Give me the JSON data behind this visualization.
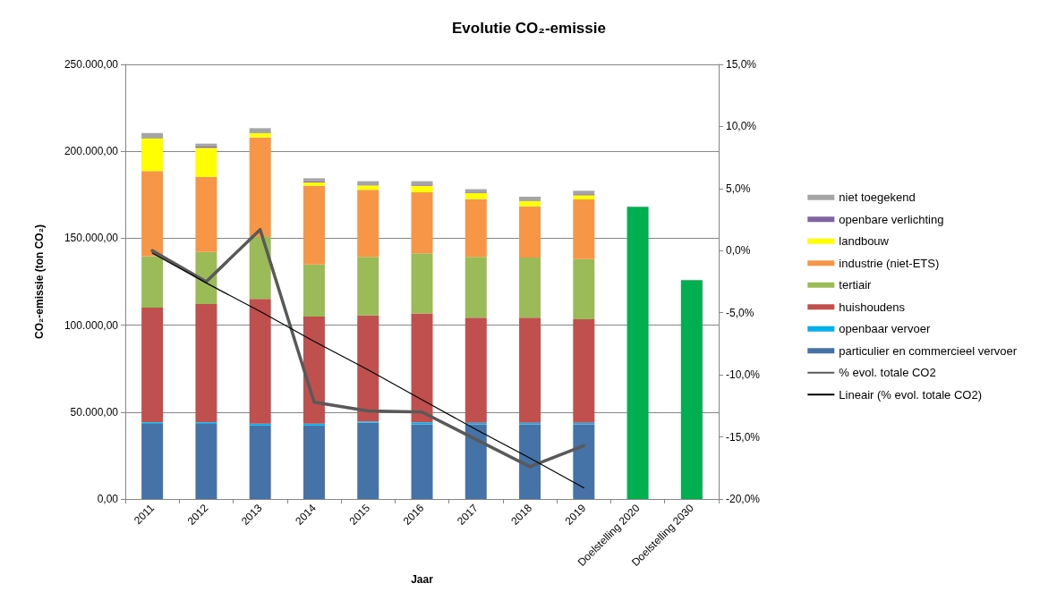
{
  "chart_data": {
    "type": "bar",
    "stacked": true,
    "title": "Evolutie CO₂-emissie",
    "xlabel": "Jaar",
    "ylabel": "CO₂-emissie (ton CO₂)",
    "categories": [
      "2011",
      "2012",
      "2013",
      "2014",
      "2015",
      "2016",
      "2017",
      "2018",
      "2019",
      "Doelstelling 2020",
      "Doelstelling 2030"
    ],
    "series": [
      {
        "name": "particulier en commercieel vervoer",
        "color": "#4572a7",
        "values": [
          43200,
          43200,
          42300,
          42300,
          43900,
          43000,
          43000,
          43000,
          43000,
          null,
          null
        ]
      },
      {
        "name": "openbaar vervoer",
        "color": "#00b0f0",
        "values": [
          900,
          900,
          1100,
          1100,
          700,
          1100,
          900,
          900,
          900,
          null,
          null
        ]
      },
      {
        "name": "huishoudens",
        "color": "#c0504d",
        "values": [
          66000,
          68000,
          71700,
          61500,
          61000,
          62700,
          60400,
          60400,
          59500,
          null,
          null
        ]
      },
      {
        "name": "tertiair",
        "color": "#9bbb59",
        "values": [
          29500,
          30000,
          35600,
          30000,
          33700,
          34500,
          35000,
          34600,
          34600,
          null,
          null
        ]
      },
      {
        "name": "industrie (niet-ETS)",
        "color": "#f79646",
        "values": [
          49000,
          43200,
          57300,
          45300,
          38500,
          35100,
          33200,
          29500,
          34300,
          null,
          null
        ]
      },
      {
        "name": "landbouw",
        "color": "#ffff00",
        "values": [
          18900,
          16700,
          2400,
          1900,
          2600,
          3800,
          3400,
          2900,
          2400,
          null,
          null
        ]
      },
      {
        "name": "openbare verlichting",
        "color": "#8064a2",
        "values": [
          300,
          700,
          300,
          700,
          500,
          700,
          400,
          300,
          600,
          null,
          null
        ]
      },
      {
        "name": "niet toegekend",
        "color": "#a5a5a5",
        "values": [
          2700,
          1700,
          2600,
          1700,
          1900,
          1900,
          1900,
          2300,
          2000,
          null,
          null
        ]
      },
      {
        "color": "#00b050",
        "values": [
          null,
          null,
          null,
          null,
          null,
          null,
          null,
          null,
          null,
          168100,
          125900
        ]
      },
      {
        "name": "% evol. totale CO2",
        "type": "line",
        "axis": "y2",
        "color": "#595959",
        "values": [
          0.0,
          -2.5,
          1.7,
          -12.2,
          -12.9,
          -13.0,
          -15.2,
          -17.4,
          -15.7,
          null,
          null
        ]
      },
      {
        "name": "Lineair (% evol. totale CO2)",
        "type": "line",
        "axis": "y2",
        "color": "#000000",
        "values": [
          -0.2,
          -2.6,
          -4.9,
          -7.3,
          -9.6,
          -12.0,
          -14.4,
          -16.7,
          -19.1,
          null,
          null
        ]
      }
    ],
    "ylim": [
      0,
      250000
    ],
    "yticks": [
      {
        "value": 0,
        "label": "0,00"
      },
      {
        "value": 50000,
        "label": "50.000,00"
      },
      {
        "value": 100000,
        "label": "100.000,00"
      },
      {
        "value": 150000,
        "label": "150.000,00"
      },
      {
        "value": 200000,
        "label": "200.000,00"
      },
      {
        "value": 250000,
        "label": "250.000,00"
      }
    ],
    "y2lim": [
      -20,
      15
    ],
    "y2ticks": [
      {
        "value": -20,
        "label": "-20,0%"
      },
      {
        "value": -15,
        "label": "-15,0%"
      },
      {
        "value": -10,
        "label": "-10,0%"
      },
      {
        "value": -5,
        "label": "-5,0%"
      },
      {
        "value": 0,
        "label": "0,0%"
      },
      {
        "value": 5,
        "label": "5,0%"
      },
      {
        "value": 10,
        "label": "10,0%"
      },
      {
        "value": 15,
        "label": "15,0%"
      }
    ],
    "grid": "y",
    "legend": "right",
    "marker": "none"
  }
}
